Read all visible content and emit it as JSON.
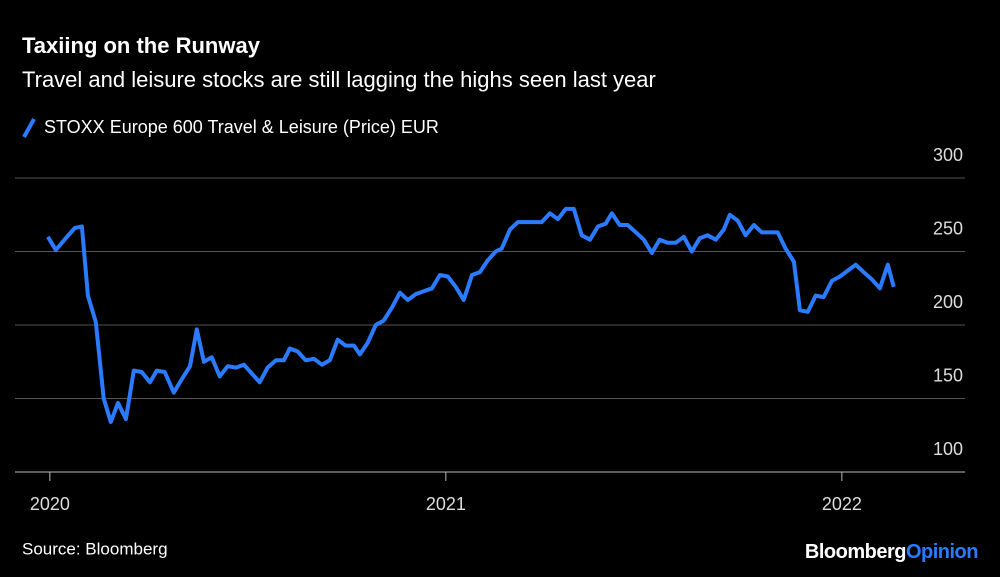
{
  "chart_data": {
    "type": "line",
    "title": "Taxiing on the Runway",
    "subtitle": "Travel and leisure stocks are still lagging the highs seen last year",
    "source": "Source: Bloomberg",
    "brand": [
      "Bloomberg",
      "Opinion"
    ],
    "brand_colors": [
      "#ffffff",
      "#2a7bff"
    ],
    "legend": "top-left",
    "grid": true,
    "xlim": [
      2019.912,
      2022.311
    ],
    "xticks": [
      2020,
      2021,
      2022
    ],
    "ylim": [
      100,
      300
    ],
    "yticks": [
      100,
      150,
      200,
      250,
      300
    ],
    "x": [
      2019.995,
      2020.015,
      2020.04,
      2020.063,
      2020.081,
      2020.096,
      2020.116,
      2020.136,
      2020.154,
      2020.172,
      2020.192,
      2020.212,
      2020.232,
      2020.253,
      2020.27,
      2020.29,
      2020.313,
      2020.333,
      2020.354,
      2020.371,
      2020.389,
      2020.409,
      2020.429,
      2020.449,
      2020.47,
      2020.49,
      2020.51,
      2020.53,
      2020.55,
      2020.571,
      2020.591,
      2020.606,
      2020.626,
      2020.646,
      2020.667,
      2020.687,
      2020.707,
      2020.727,
      2020.747,
      2020.768,
      2020.783,
      2020.803,
      2020.823,
      2020.843,
      2020.864,
      2020.884,
      2020.904,
      2020.924,
      2020.944,
      2020.965,
      2020.985,
      2021.005,
      2021.025,
      2021.045,
      2021.066,
      2021.086,
      2021.106,
      2021.126,
      2021.141,
      2021.162,
      2021.182,
      2021.202,
      2021.222,
      2021.242,
      2021.263,
      2021.283,
      2021.303,
      2021.323,
      2021.343,
      2021.364,
      2021.384,
      2021.404,
      2021.419,
      2021.439,
      2021.459,
      2021.48,
      2021.5,
      2021.52,
      2021.54,
      2021.56,
      2021.581,
      2021.601,
      2021.621,
      2021.641,
      2021.661,
      2021.682,
      2021.702,
      2021.717,
      2021.737,
      2021.757,
      2021.778,
      2021.798,
      2021.818,
      2021.838,
      2021.858,
      2021.879,
      2021.894,
      2021.914,
      2021.934,
      2021.954,
      2021.975,
      2021.995,
      2022.015,
      2022.035,
      2022.055,
      2022.076,
      2022.096,
      2022.116,
      2022.131
    ],
    "series": [
      {
        "name": "STOXX Europe 600 Travel & Leisure (Price) EUR",
        "color": "#2a7bff",
        "values": [
          260,
          251,
          259,
          266,
          267,
          220,
          202,
          150,
          134,
          147,
          136,
          169,
          168,
          161,
          169,
          168,
          154,
          163,
          172,
          197,
          175,
          178,
          165,
          172,
          171,
          173,
          167,
          161,
          171,
          176,
          176,
          184,
          182,
          176,
          177,
          173,
          176,
          190,
          186,
          186,
          180,
          188,
          200,
          203,
          212,
          222,
          217,
          221,
          223,
          225,
          234,
          233,
          226,
          217,
          234,
          236,
          244,
          250,
          252,
          265,
          270,
          270,
          270,
          270,
          276,
          272,
          279,
          279,
          261,
          258,
          267,
          269,
          276,
          268,
          268,
          263,
          258,
          249,
          258,
          256,
          256,
          260,
          250,
          259,
          261,
          258,
          265,
          275,
          271,
          261,
          268,
          263,
          263,
          263,
          252,
          243,
          210,
          209,
          220,
          219,
          230,
          233,
          237,
          241,
          236,
          231,
          225,
          241,
          226
        ]
      }
    ]
  }
}
